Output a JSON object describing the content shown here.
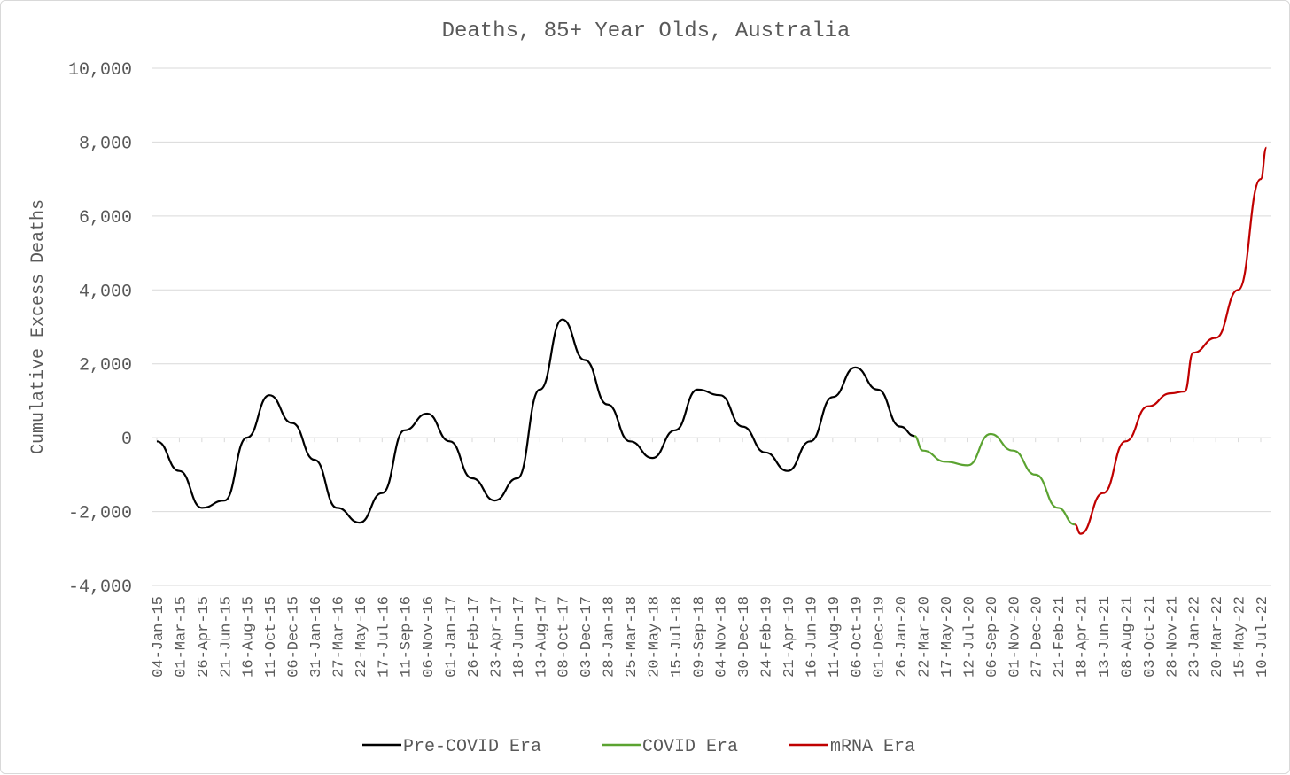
{
  "chart_data": {
    "type": "line",
    "title": "Deaths, 85+ Year Olds, Australia",
    "xlabel": "",
    "ylabel": "Cumulative Excess Deaths",
    "ylim": [
      -4000,
      10000
    ],
    "yticks": [
      -4000,
      -2000,
      0,
      2000,
      4000,
      6000,
      8000,
      10000
    ],
    "ytick_labels": [
      "-4,000",
      "-2,000",
      "0",
      "2,000",
      "4,000",
      "6,000",
      "8,000",
      "10,000"
    ],
    "x_tick_labels": [
      "04-Jan-15",
      "01-Mar-15",
      "26-Apr-15",
      "21-Jun-15",
      "16-Aug-15",
      "11-Oct-15",
      "06-Dec-15",
      "31-Jan-16",
      "27-Mar-16",
      "22-May-16",
      "17-Jul-16",
      "11-Sep-16",
      "06-Nov-16",
      "01-Jan-17",
      "26-Feb-17",
      "23-Apr-17",
      "18-Jun-17",
      "13-Aug-17",
      "08-Oct-17",
      "03-Dec-17",
      "28-Jan-18",
      "25-Mar-18",
      "20-May-18",
      "15-Jul-18",
      "09-Sep-18",
      "04-Nov-18",
      "30-Dec-18",
      "24-Feb-19",
      "21-Apr-19",
      "16-Jun-19",
      "11-Aug-19",
      "06-Oct-19",
      "01-Dec-19",
      "26-Jan-20",
      "22-Mar-20",
      "17-May-20",
      "12-Jul-20",
      "06-Sep-20",
      "01-Nov-20",
      "27-Dec-20",
      "21-Feb-21",
      "18-Apr-21",
      "13-Jun-21",
      "08-Aug-21",
      "03-Oct-21",
      "28-Nov-21",
      "23-Jan-22",
      "20-Mar-22",
      "15-May-22",
      "10-Jul-22"
    ],
    "grid": true,
    "legend_position": "bottom",
    "series": [
      {
        "name": "Pre-COVID Era",
        "color": "#000000",
        "points": [
          [
            "04-Jan-15",
            -100
          ],
          [
            "01-Mar-15",
            -900
          ],
          [
            "26-Apr-15",
            -1900
          ],
          [
            "21-Jun-15",
            -1700
          ],
          [
            "16-Aug-15",
            0
          ],
          [
            "11-Oct-15",
            1150
          ],
          [
            "06-Dec-15",
            400
          ],
          [
            "31-Jan-16",
            -600
          ],
          [
            "27-Mar-16",
            -1900
          ],
          [
            "22-May-16",
            -2300
          ],
          [
            "17-Jul-16",
            -1500
          ],
          [
            "11-Sep-16",
            200
          ],
          [
            "06-Nov-16",
            650
          ],
          [
            "01-Jan-17",
            -100
          ],
          [
            "26-Feb-17",
            -1100
          ],
          [
            "23-Apr-17",
            -1700
          ],
          [
            "18-Jun-17",
            -1100
          ],
          [
            "13-Aug-17",
            1300
          ],
          [
            "08-Oct-17",
            3200
          ],
          [
            "03-Dec-17",
            2100
          ],
          [
            "28-Jan-18",
            900
          ],
          [
            "25-Mar-18",
            -100
          ],
          [
            "20-May-18",
            -550
          ],
          [
            "15-Jul-18",
            200
          ],
          [
            "09-Sep-18",
            1300
          ],
          [
            "04-Nov-18",
            1150
          ],
          [
            "30-Dec-18",
            300
          ],
          [
            "24-Feb-19",
            -400
          ],
          [
            "21-Apr-19",
            -900
          ],
          [
            "16-Jun-19",
            -100
          ],
          [
            "11-Aug-19",
            1100
          ],
          [
            "06-Oct-19",
            1900
          ],
          [
            "01-Dec-19",
            1300
          ],
          [
            "26-Jan-20",
            300
          ],
          [
            "01-Mar-20",
            50
          ]
        ]
      },
      {
        "name": "COVID Era",
        "color": "#5ba331",
        "points": [
          [
            "01-Mar-20",
            50
          ],
          [
            "22-Mar-20",
            -350
          ],
          [
            "17-May-20",
            -650
          ],
          [
            "12-Jul-20",
            -750
          ],
          [
            "06-Sep-20",
            100
          ],
          [
            "01-Nov-20",
            -350
          ],
          [
            "27-Dec-20",
            -1000
          ],
          [
            "21-Feb-21",
            -1900
          ],
          [
            "04-Apr-21",
            -2350
          ]
        ]
      },
      {
        "name": "mRNA Era",
        "color": "#c00000",
        "points": [
          [
            "04-Apr-21",
            -2350
          ],
          [
            "18-Apr-21",
            -2600
          ],
          [
            "13-Jun-21",
            -1500
          ],
          [
            "08-Aug-21",
            -100
          ],
          [
            "03-Oct-21",
            850
          ],
          [
            "28-Nov-21",
            1200
          ],
          [
            "02-Jan-22",
            1250
          ],
          [
            "23-Jan-22",
            2300
          ],
          [
            "20-Mar-22",
            2700
          ],
          [
            "15-May-22",
            4000
          ],
          [
            "10-Jul-22",
            7000
          ],
          [
            "24-Jul-22",
            7850
          ]
        ]
      }
    ]
  }
}
